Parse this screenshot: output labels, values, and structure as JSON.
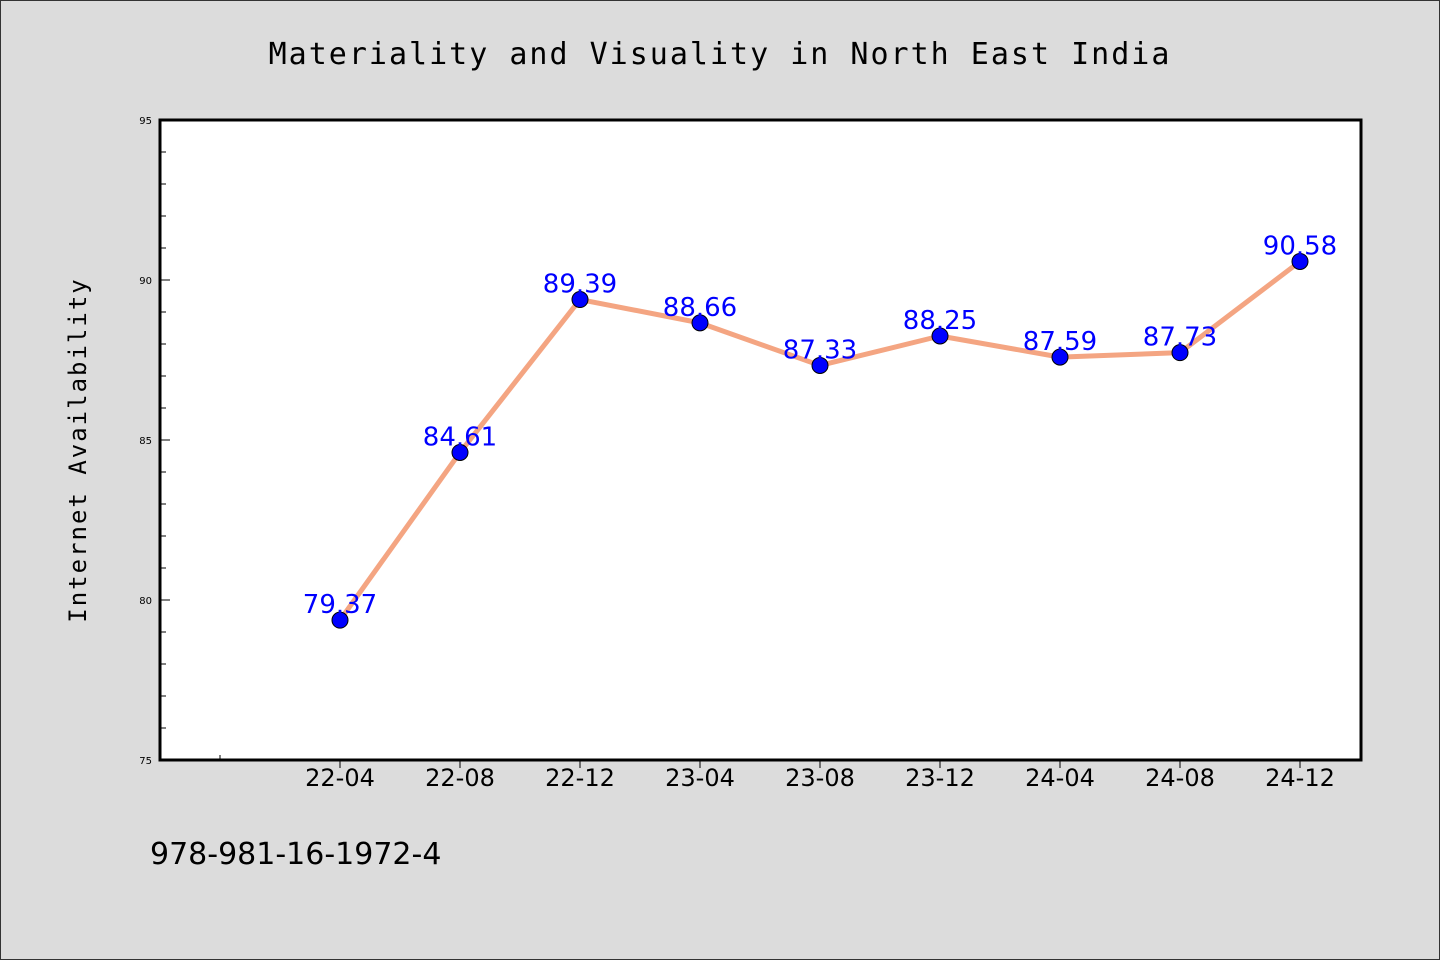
{
  "chart_data": {
    "type": "line",
    "title": "Materiality and Visuality in North East India",
    "xlabel": "",
    "ylabel": "Internet Availability",
    "categories": [
      "22-04",
      "22-08",
      "22-12",
      "23-04",
      "23-08",
      "23-12",
      "24-04",
      "24-08",
      "24-12"
    ],
    "series": [
      {
        "values": [
          79.37,
          84.61,
          89.39,
          88.66,
          87.33,
          88.25,
          87.59,
          87.73,
          90.58
        ],
        "labels": [
          "79.37",
          "84.61",
          "89.39",
          "88.66",
          "87.33",
          "88.25",
          "87.59",
          "87.73",
          "90.58"
        ],
        "line_color": "#f4a582",
        "marker_color": "#0000ff",
        "label_color": "#0000ff"
      }
    ],
    "ylim": [
      75,
      95
    ],
    "yticks": [
      75,
      80,
      85,
      90,
      95
    ],
    "ytick_labels": [
      "75",
      "80",
      "85",
      "90",
      "95"
    ],
    "grid": false,
    "legend": false
  },
  "footnote": "978-981-16-1972-4"
}
